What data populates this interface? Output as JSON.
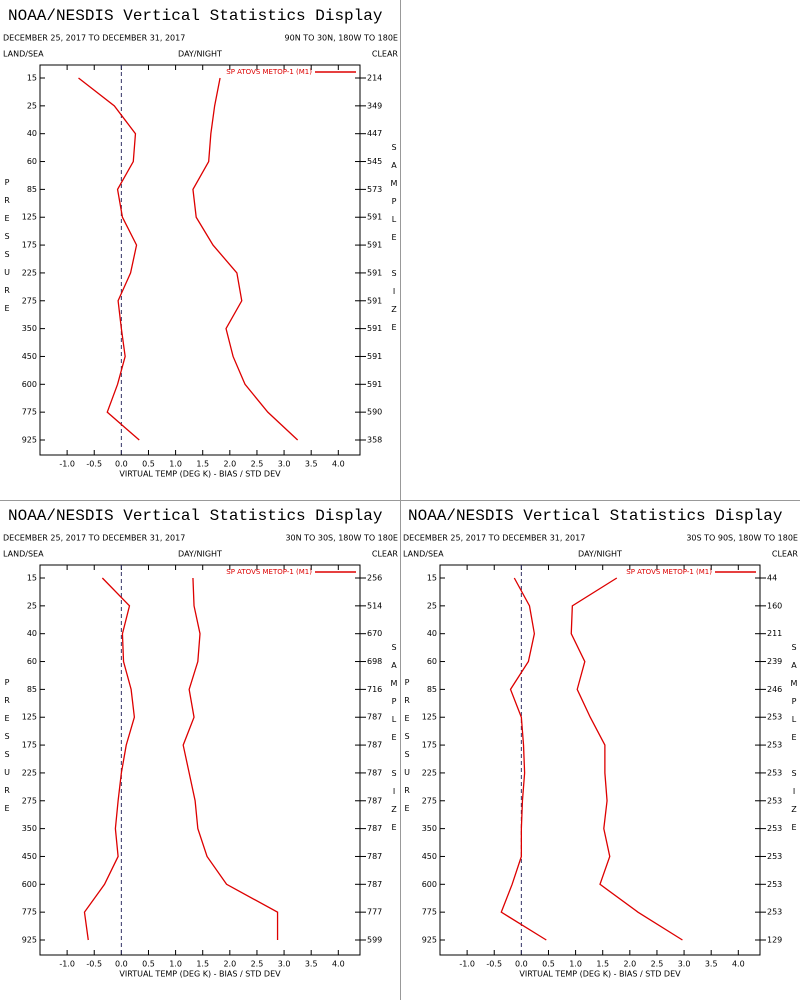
{
  "chart_data": [
    {
      "type": "line",
      "title": "NOAA/NESDIS Vertical Statistics Display",
      "subtitle": "DECEMBER 25, 2017 TO DECEMBER 31, 2017",
      "region": "90N TO 30N, 180W TO 180E",
      "land_sea": "LAND/SEA",
      "day_night": "DAY/NIGHT",
      "clear": "CLEAR",
      "ylabel": "PRESSURE",
      "y2label": "SAMPLE SIZE",
      "xlabel": "VIRTUAL TEMP (DEG K) - BIAS / STD DEV",
      "legend": "SP ATOVS METOP-1 (M1)",
      "categories": [
        15,
        25,
        40,
        60,
        85,
        125,
        175,
        225,
        275,
        350,
        450,
        600,
        775,
        925
      ],
      "sample_size": [
        214,
        349,
        447,
        545,
        573,
        591,
        591,
        591,
        591,
        591,
        591,
        591,
        590,
        358
      ],
      "series": [
        {
          "color": "#dd0000",
          "values": [
            -0.79,
            -0.13,
            0.26,
            0.22,
            -0.07,
            0.02,
            0.28,
            0.17,
            -0.06,
            0.0,
            0.07,
            -0.07,
            -0.26,
            0.33
          ]
        },
        {
          "color": "#dd0000",
          "values": [
            1.82,
            1.72,
            1.65,
            1.61,
            1.32,
            1.38,
            1.69,
            2.13,
            2.22,
            1.93,
            2.06,
            2.28,
            2.7,
            3.25
          ]
        }
      ],
      "xlim": [
        -1.5,
        4.4
      ],
      "xticks": [
        {
          "value": -1.0,
          "label": "-1.0"
        },
        {
          "value": -0.5,
          "label": "-0.5"
        },
        {
          "value": 0.0,
          "label": "0.0"
        },
        {
          "value": 0.5,
          "label": "0.5"
        },
        {
          "value": 1.0,
          "label": "1.0"
        },
        {
          "value": 1.5,
          "label": "1.5"
        },
        {
          "value": 2.0,
          "label": "2.0"
        },
        {
          "value": 2.5,
          "label": "2.5"
        },
        {
          "value": 3.0,
          "label": "3.0"
        },
        {
          "value": 3.5,
          "label": "3.5"
        },
        {
          "value": 4.0,
          "label": "4.0"
        }
      ],
      "zero_line": 0
    },
    {
      "type": "line",
      "title": "NOAA/NESDIS Vertical Statistics Display",
      "subtitle": "DECEMBER 25, 2017 TO DECEMBER 31, 2017",
      "region": "30N TO 30S, 180W TO 180E",
      "land_sea": "LAND/SEA",
      "day_night": "DAY/NIGHT",
      "clear": "CLEAR",
      "ylabel": "PRESSURE",
      "y2label": "SAMPLE SIZE",
      "xlabel": "VIRTUAL TEMP (DEG K) - BIAS / STD DEV",
      "legend": "SP ATOVS METOP-1 (M1)",
      "categories": [
        15,
        25,
        40,
        60,
        85,
        125,
        175,
        225,
        275,
        350,
        450,
        600,
        775,
        925
      ],
      "sample_size": [
        256,
        514,
        670,
        698,
        716,
        787,
        787,
        787,
        787,
        787,
        787,
        787,
        777,
        599
      ],
      "series": [
        {
          "color": "#dd0000",
          "values": [
            -0.35,
            0.15,
            0.02,
            0.04,
            0.18,
            0.24,
            0.09,
            0.0,
            -0.06,
            -0.11,
            -0.06,
            -0.31,
            -0.68,
            -0.61
          ]
        },
        {
          "color": "#dd0000",
          "values": [
            1.32,
            1.34,
            1.45,
            1.41,
            1.25,
            1.34,
            1.14,
            1.25,
            1.36,
            1.41,
            1.58,
            1.94,
            2.88,
            2.88
          ]
        }
      ],
      "xlim": [
        -1.5,
        4.4
      ],
      "xticks": [
        {
          "value": -1.0,
          "label": "-1.0"
        },
        {
          "value": -0.5,
          "label": "-0.5"
        },
        {
          "value": 0.0,
          "label": "0.0"
        },
        {
          "value": 0.5,
          "label": "0.5"
        },
        {
          "value": 1.0,
          "label": "1.0"
        },
        {
          "value": 1.5,
          "label": "1.5"
        },
        {
          "value": 2.0,
          "label": "2.0"
        },
        {
          "value": 2.5,
          "label": "2.5"
        },
        {
          "value": 3.0,
          "label": "3.0"
        },
        {
          "value": 3.5,
          "label": "3.5"
        },
        {
          "value": 4.0,
          "label": "4.0"
        }
      ],
      "zero_line": 0
    },
    {
      "type": "line",
      "title": "NOAA/NESDIS Vertical Statistics Display",
      "subtitle": "DECEMBER 25, 2017 TO DECEMBER 31, 2017",
      "region": "30S TO 90S, 180W TO 180E",
      "land_sea": "LAND/SEA",
      "day_night": "DAY/NIGHT",
      "clear": "CLEAR",
      "ylabel": "PRESSURE",
      "y2label": "SAMPLE SIZE",
      "xlabel": "VIRTUAL TEMP (DEG K) - BIAS / STD DEV",
      "legend": "SP ATOVS METOP-1 (M1)",
      "categories": [
        15,
        25,
        40,
        60,
        85,
        125,
        175,
        225,
        275,
        350,
        450,
        600,
        775,
        925
      ],
      "sample_size": [
        44,
        160,
        211,
        239,
        246,
        253,
        253,
        253,
        253,
        253,
        253,
        253,
        253,
        129
      ],
      "series": [
        {
          "color": "#dd0000",
          "values": [
            -0.13,
            0.15,
            0.24,
            0.13,
            -0.2,
            0.0,
            0.04,
            0.06,
            0.02,
            0.0,
            0.0,
            -0.17,
            -0.37,
            0.46
          ]
        },
        {
          "color": "#dd0000",
          "values": [
            1.76,
            0.94,
            0.92,
            1.17,
            1.03,
            1.27,
            1.54,
            1.54,
            1.58,
            1.52,
            1.63,
            1.45,
            2.15,
            2.97
          ]
        }
      ],
      "xlim": [
        -1.5,
        4.4
      ],
      "xticks": [
        {
          "value": -1.0,
          "label": "-1.0"
        },
        {
          "value": -0.5,
          "label": "-0.5"
        },
        {
          "value": 0.0,
          "label": "0.0"
        },
        {
          "value": 0.5,
          "label": "0.5"
        },
        {
          "value": 1.0,
          "label": "1.0"
        },
        {
          "value": 1.5,
          "label": "1.5"
        },
        {
          "value": 2.0,
          "label": "2.0"
        },
        {
          "value": 2.5,
          "label": "2.5"
        },
        {
          "value": 3.0,
          "label": "3.0"
        },
        {
          "value": 3.5,
          "label": "3.5"
        },
        {
          "value": 4.0,
          "label": "4.0"
        }
      ],
      "zero_line": 0
    }
  ]
}
